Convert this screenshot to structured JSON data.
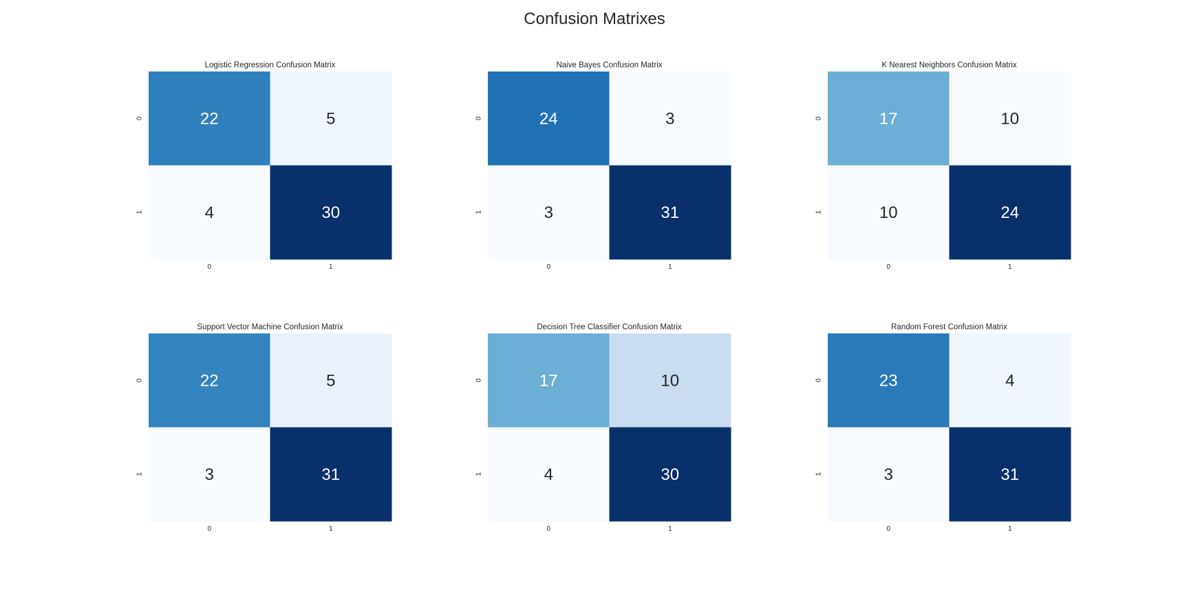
{
  "figure": {
    "title": "Confusion Matrixes"
  },
  "chart_data": [
    {
      "type": "heatmap",
      "title": "Logistic Regression Confusion Matrix",
      "x_tick_labels": [
        "0",
        "1"
      ],
      "y_tick_labels": [
        "0",
        "1"
      ],
      "values": [
        [
          22,
          5
        ],
        [
          4,
          30
        ]
      ],
      "colormap": "Blues",
      "colorbar": false,
      "annotations": true
    },
    {
      "type": "heatmap",
      "title": "Naive Bayes Confusion Matrix",
      "x_tick_labels": [
        "0",
        "1"
      ],
      "y_tick_labels": [
        "0",
        "1"
      ],
      "values": [
        [
          24,
          3
        ],
        [
          3,
          31
        ]
      ],
      "colormap": "Blues",
      "colorbar": false,
      "annotations": true
    },
    {
      "type": "heatmap",
      "title": "K Nearest Neighbors Confusion Matrix",
      "x_tick_labels": [
        "0",
        "1"
      ],
      "y_tick_labels": [
        "0",
        "1"
      ],
      "values": [
        [
          17,
          10
        ],
        [
          10,
          24
        ]
      ],
      "colormap": "Blues",
      "colorbar": false,
      "annotations": true
    },
    {
      "type": "heatmap",
      "title": "Support Vector Machine Confusion Matrix",
      "x_tick_labels": [
        "0",
        "1"
      ],
      "y_tick_labels": [
        "0",
        "1"
      ],
      "values": [
        [
          22,
          5
        ],
        [
          3,
          31
        ]
      ],
      "colormap": "Blues",
      "colorbar": false,
      "annotations": true
    },
    {
      "type": "heatmap",
      "title": "Decision Tree Classifier Confusion Matrix",
      "x_tick_labels": [
        "0",
        "1"
      ],
      "y_tick_labels": [
        "0",
        "1"
      ],
      "values": [
        [
          17,
          10
        ],
        [
          4,
          30
        ]
      ],
      "colormap": "Blues",
      "colorbar": false,
      "annotations": true
    },
    {
      "type": "heatmap",
      "title": "Random Forest Confusion Matrix",
      "x_tick_labels": [
        "0",
        "1"
      ],
      "y_tick_labels": [
        "0",
        "1"
      ],
      "values": [
        [
          23,
          4
        ],
        [
          3,
          31
        ]
      ],
      "colormap": "Blues",
      "colorbar": false,
      "annotations": true
    }
  ]
}
